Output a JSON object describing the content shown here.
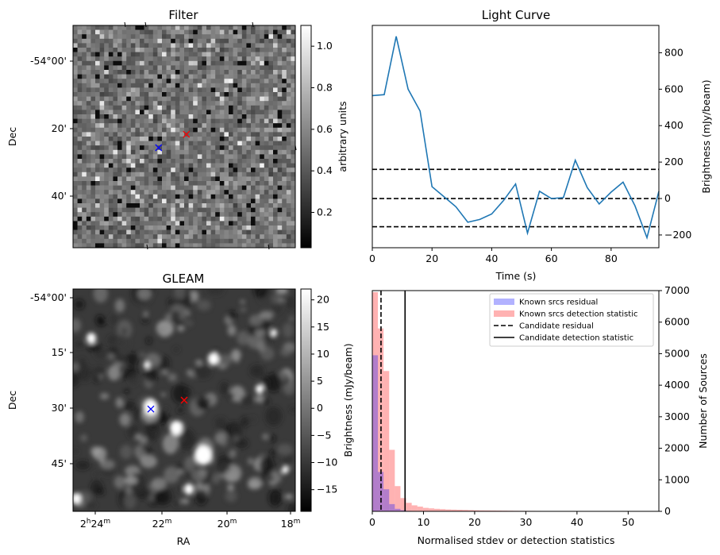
{
  "panels": {
    "filter": {
      "title": "Filter",
      "ylabel": "Dec",
      "yticks": [
        "-54°00'",
        "20'",
        "40'"
      ],
      "colorbar": {
        "label": "arbitrary units",
        "ticks": [
          "1.0",
          "0.8",
          "0.6",
          "0.4",
          "0.2"
        ],
        "range": [
          0.03,
          1.1
        ]
      },
      "markers": [
        {
          "label": "x",
          "color": "#ff0000",
          "ra_frac": 0.51,
          "dec_frac": 0.49
        },
        {
          "label": "x",
          "color": "#0000ff",
          "ra_frac": 0.385,
          "dec_frac": 0.55
        }
      ]
    },
    "gleam": {
      "title": "GLEAM",
      "xlabel": "RA",
      "ylabel": "Dec",
      "yticks": [
        "-54°00'",
        "15'",
        "30'",
        "45'"
      ],
      "xticks": [
        {
          "h": "2",
          "hsup": "h",
          "m": "24",
          "msup": "m"
        },
        {
          "h": "",
          "hsup": "",
          "m": "22",
          "msup": "m"
        },
        {
          "h": "",
          "hsup": "",
          "m": "20",
          "msup": "m"
        },
        {
          "h": "",
          "hsup": "",
          "m": "18",
          "msup": "m"
        }
      ],
      "colorbar": {
        "label": "Brightness (mJy/beam)",
        "ticks": [
          "20",
          "15",
          "10",
          "5",
          "0",
          "−5",
          "−10",
          "−15"
        ],
        "range": [
          -19,
          22
        ]
      },
      "markers": [
        {
          "label": "x",
          "color": "#ff0000",
          "ra_frac": 0.5,
          "dec_frac": 0.5
        },
        {
          "label": "x",
          "color": "#0000ff",
          "ra_frac": 0.35,
          "dec_frac": 0.54
        }
      ]
    }
  },
  "chart_data": [
    {
      "type": "line",
      "title": "Light Curve",
      "xlabel": "Time (s)",
      "ylabel": "Brightness (mJy/beam)",
      "xlim": [
        0,
        96
      ],
      "ylim": [
        -270,
        950
      ],
      "xticks": [
        "0",
        "20",
        "40",
        "60",
        "80"
      ],
      "yticks": [
        "800",
        "600",
        "400",
        "200",
        "0",
        "−200"
      ],
      "color": "#1f77b4",
      "x": [
        0,
        4,
        8,
        12,
        16,
        20,
        24,
        28,
        32,
        36,
        40,
        44,
        48,
        52,
        56,
        60,
        64,
        68,
        72,
        76,
        80,
        84,
        88,
        92,
        96
      ],
      "y": [
        565,
        570,
        890,
        600,
        480,
        65,
        10,
        -45,
        -130,
        -115,
        -85,
        -10,
        80,
        -190,
        40,
        0,
        5,
        210,
        60,
        -30,
        35,
        90,
        -40,
        -215,
        40
      ],
      "hlines": [
        160,
        0,
        -155
      ],
      "hline_style": "dashed"
    },
    {
      "type": "histogram",
      "xlabel": "Normalised stdev or detection statistics",
      "ylabel": "Number of Sources",
      "xlim": [
        0,
        56
      ],
      "ylim": [
        0,
        7000
      ],
      "xticks": [
        "0",
        "10",
        "20",
        "30",
        "40",
        "50"
      ],
      "yticks": [
        "7000",
        "6000",
        "5000",
        "4000",
        "3000",
        "2000",
        "1000",
        "0"
      ],
      "bin_width": 1.1,
      "series": [
        {
          "name": "Known srcs residual",
          "color": "#0000ff",
          "alpha": 0.3,
          "bin_start": 0,
          "counts": [
            4950,
            1250,
            700,
            230,
            80,
            35,
            15,
            8,
            5,
            3,
            2,
            1
          ]
        },
        {
          "name": "Known srcs detection statistic",
          "color": "#ff0000",
          "alpha": 0.3,
          "bin_start": 0,
          "counts": [
            6950,
            5800,
            4450,
            1950,
            800,
            420,
            270,
            190,
            150,
            110,
            95,
            80,
            70,
            60,
            55,
            50,
            45,
            40,
            35,
            30,
            28,
            26,
            24,
            22,
            20,
            18,
            16,
            15,
            14,
            13,
            12,
            11,
            10,
            9,
            8,
            7,
            6,
            5,
            5,
            4,
            4,
            3,
            3,
            3,
            2,
            2,
            2,
            3,
            2
          ]
        }
      ],
      "vlines": [
        {
          "name": "Candidate residual",
          "x": 1.7,
          "style": "dashed"
        },
        {
          "name": "Candidate detection statistic",
          "x": 6.4,
          "style": "solid"
        }
      ],
      "legend_position": "top-right"
    }
  ]
}
